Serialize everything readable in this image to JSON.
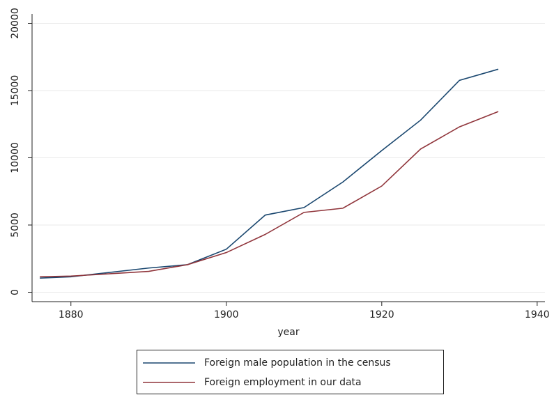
{
  "chart_data": {
    "type": "line",
    "x_label": "year",
    "x": [
      1876,
      1880,
      1890,
      1895,
      1900,
      1905,
      1910,
      1915,
      1920,
      1925,
      1930,
      1935
    ],
    "series": [
      {
        "name": "Foreign male population in the census",
        "color": "#1a476f",
        "values": [
          1050,
          1150,
          1800,
          2050,
          3200,
          5740,
          6300,
          8200,
          10540,
          12800,
          15760,
          16590
        ]
      },
      {
        "name": "Foreign employment in our data",
        "color": "#90353b",
        "values": [
          1150,
          1200,
          1550,
          2050,
          2950,
          4300,
          5940,
          6250,
          7900,
          10650,
          12300,
          13440
        ]
      }
    ],
    "xlim": [
      1875,
      1941
    ],
    "xticks": [
      1880,
      1900,
      1920,
      1940
    ],
    "ylim": [
      -700,
      20700
    ],
    "yticks": [
      0,
      5000,
      10000,
      15000,
      20000
    ],
    "grid": true,
    "legend": "bottom"
  }
}
